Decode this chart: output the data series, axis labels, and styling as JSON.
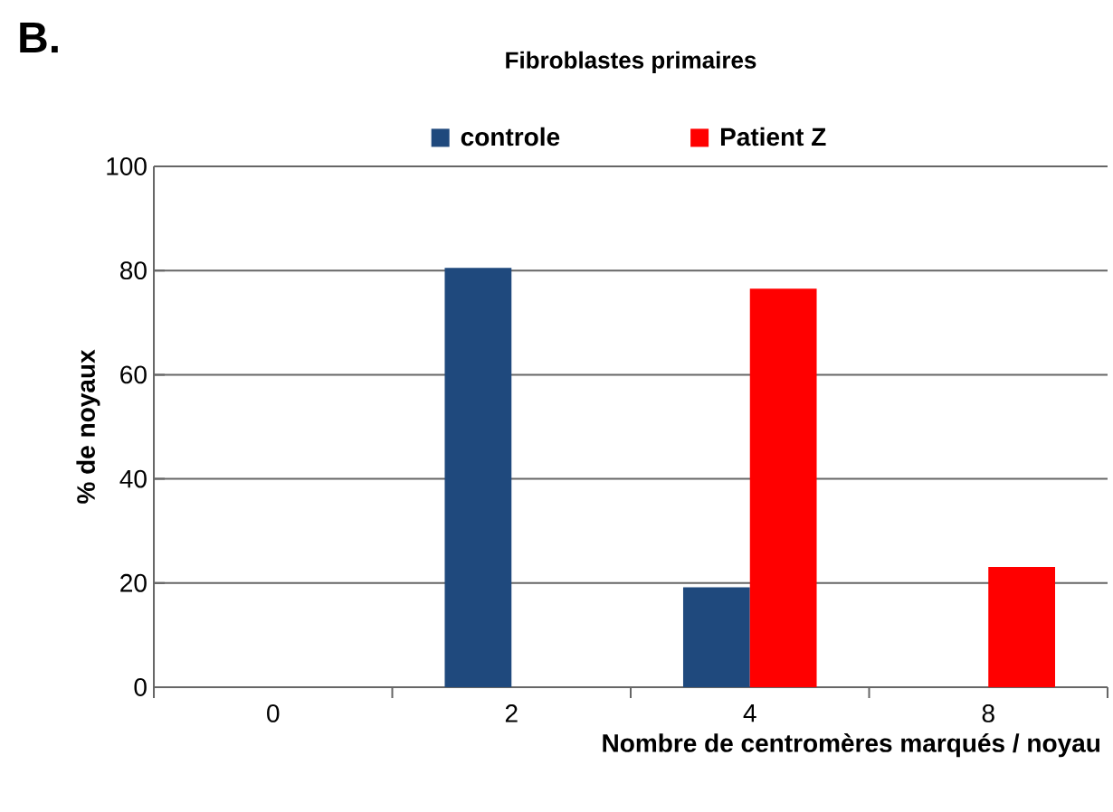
{
  "chart_data": {
    "type": "bar",
    "title": "Fibroblastes primaires",
    "annotations": [
      "B."
    ],
    "xlabel": "Nombre de centromères marqués / noyau",
    "ylabel": "% de noyaux",
    "categories": [
      "0",
      "2",
      "4",
      "8"
    ],
    "series": [
      {
        "name": "controle",
        "color": "#1f497d",
        "values": [
          0,
          80.5,
          19.2,
          0
        ]
      },
      {
        "name": "Patient Z",
        "color": "#ff0000",
        "values": [
          0,
          0,
          76.5,
          23.1
        ]
      }
    ],
    "ylim": [
      0,
      100
    ],
    "yticks": [
      0,
      20,
      40,
      60,
      80,
      100
    ],
    "grid": "y",
    "legend": "top"
  }
}
